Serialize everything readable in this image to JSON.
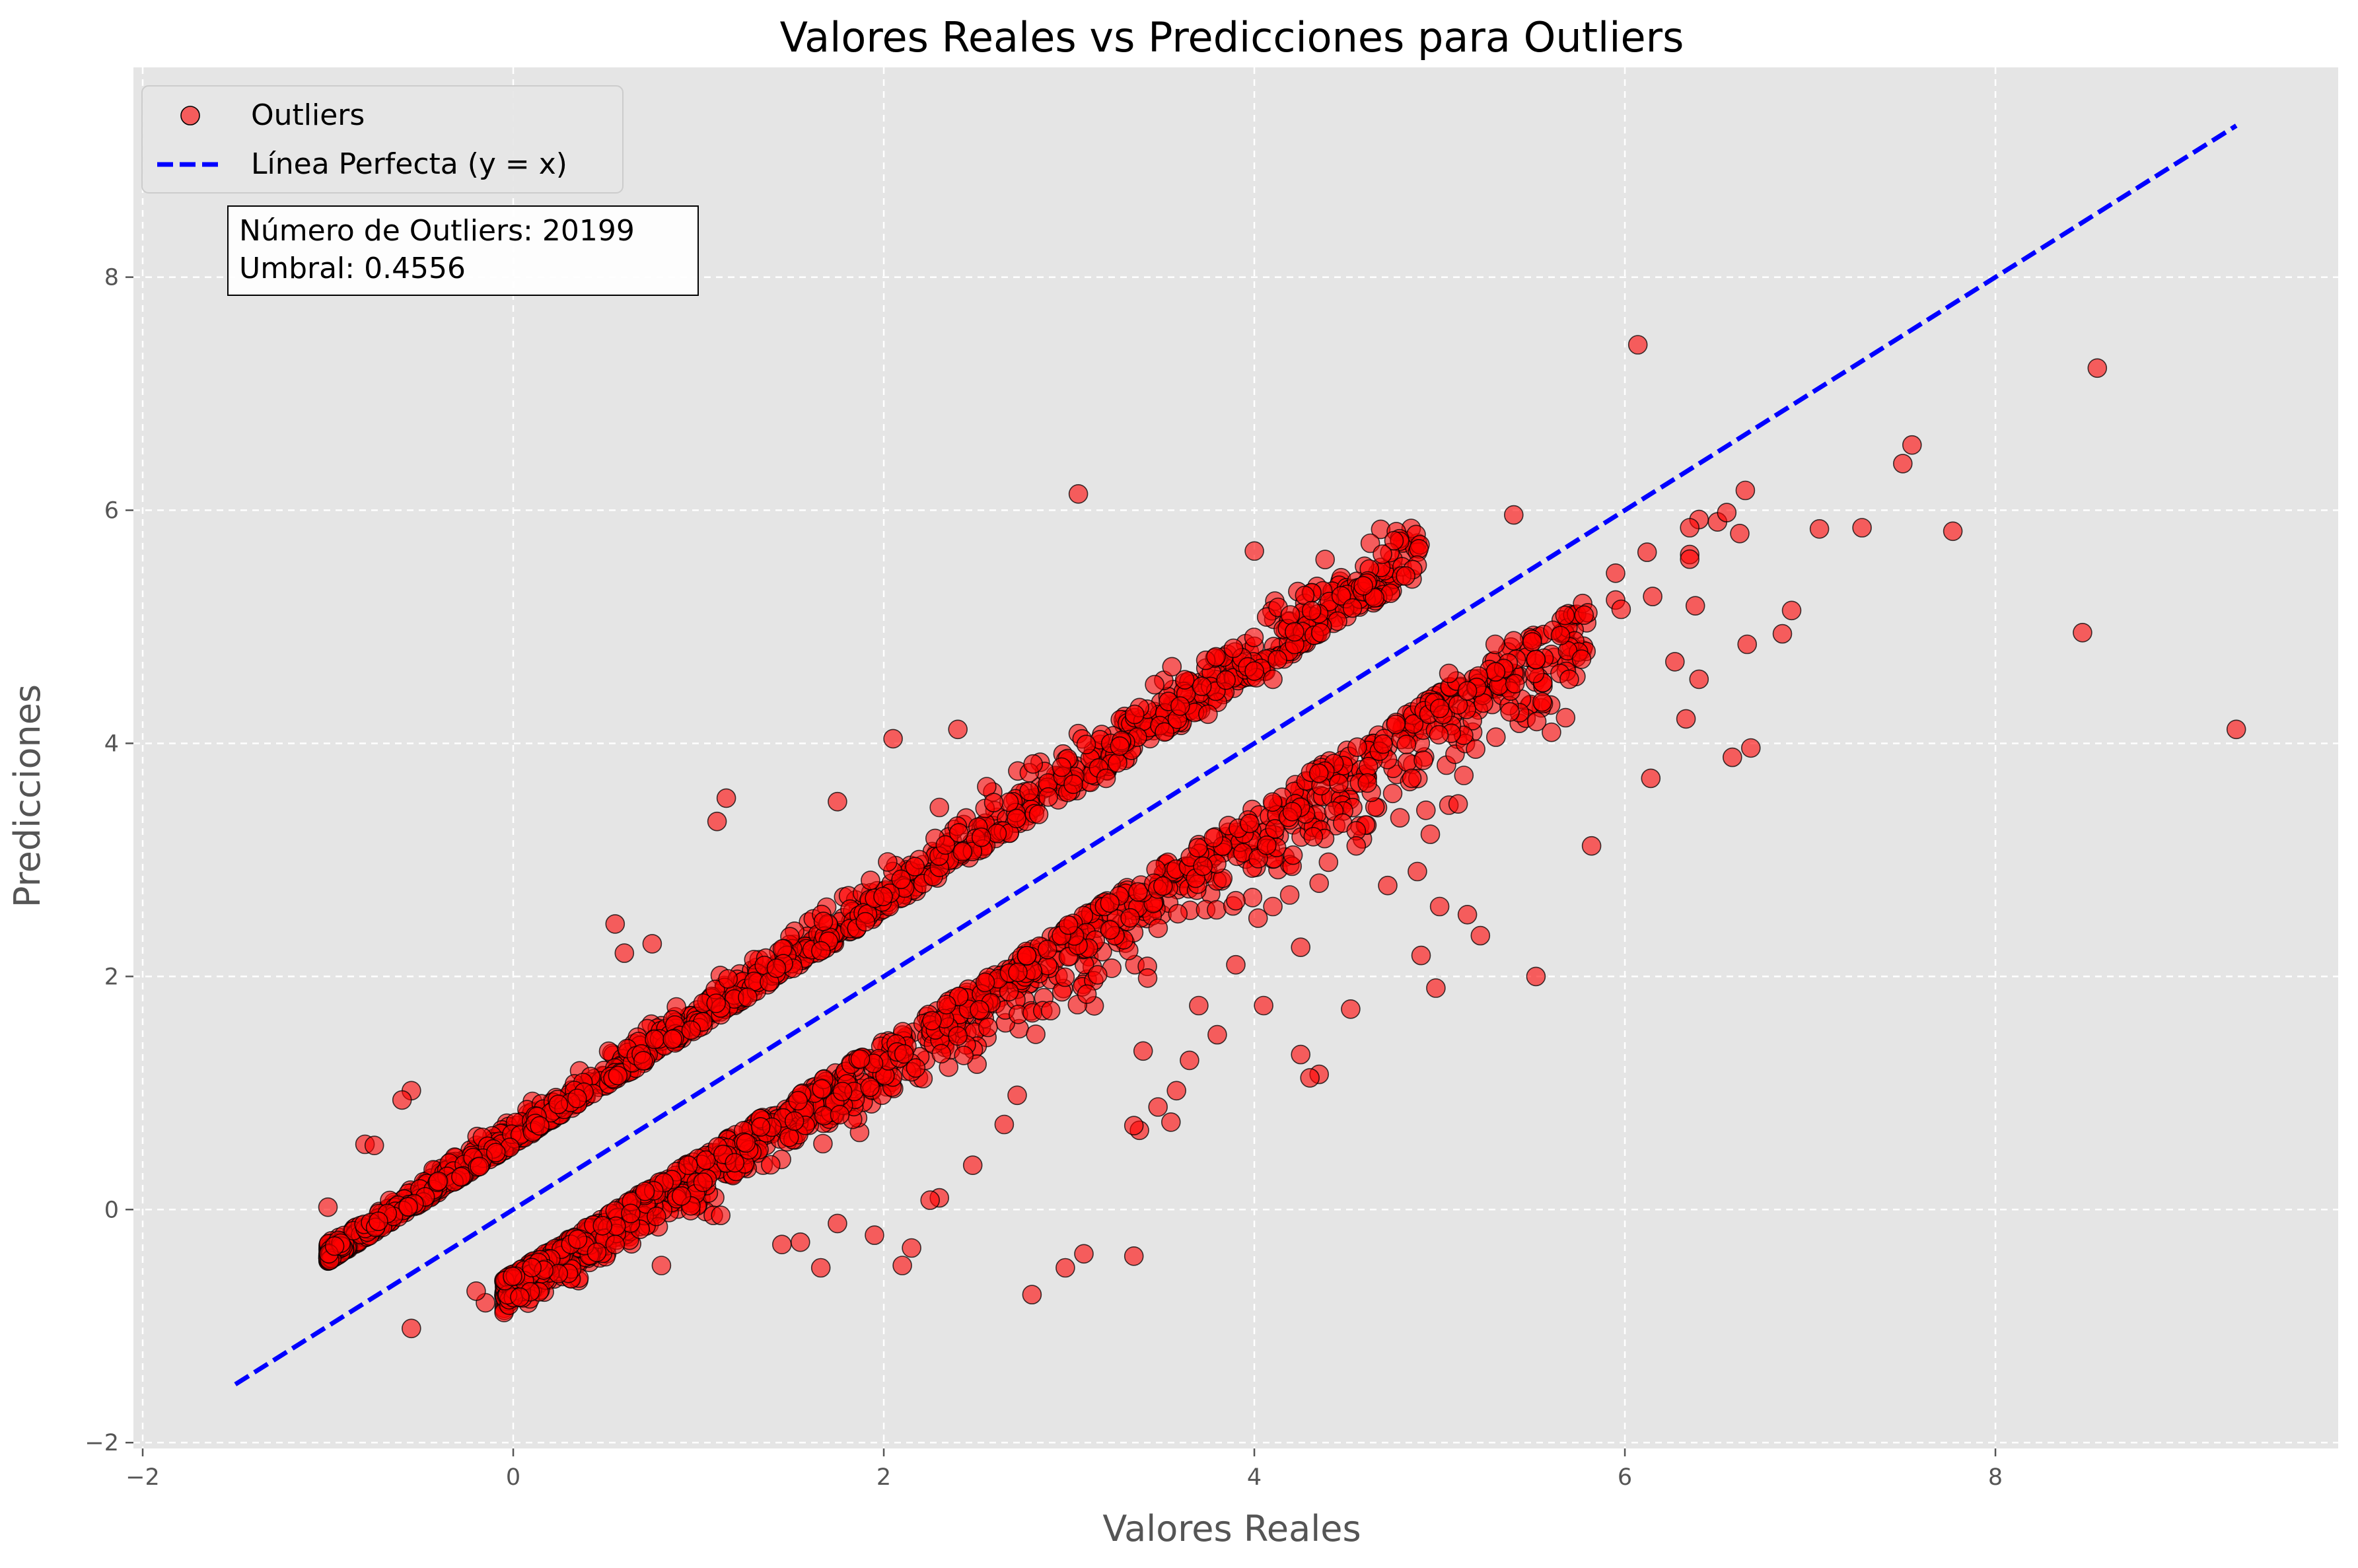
{
  "chart_data": {
    "type": "scatter",
    "title": "Valores Reales vs Predicciones para Outliers",
    "xlabel": "Valores Reales",
    "ylabel": "Predicciones",
    "xlim": [
      -2.05,
      9.85
    ],
    "ylim": [
      -2.05,
      9.8
    ],
    "xticks": [
      -2,
      0,
      2,
      4,
      6,
      8
    ],
    "yticks": [
      -2,
      0,
      2,
      4,
      6,
      8
    ],
    "xtick_labels": [
      "−2",
      "0",
      "2",
      "4",
      "6",
      "8"
    ],
    "ytick_labels": [
      "−2",
      "0",
      "2",
      "4",
      "6",
      "8"
    ],
    "grid": true,
    "legend_position": "top-left",
    "colors": {
      "background": "#e5e5e5",
      "points": "#ff0000",
      "reference_line": "#0000ff"
    },
    "annotation": {
      "line1": "Número de Outliers: 20199",
      "line2": "Umbral: 0.4556"
    },
    "reference_line": {
      "name": "Línea Perfecta (y = x)",
      "x": [
        -1.5,
        9.3
      ],
      "y": [
        -1.5,
        9.3
      ]
    },
    "series": [
      {
        "name": "Outliers",
        "clusters": [
          {
            "x_start": -1.0,
            "x_end": 4.9,
            "offset": 0.55,
            "spread": 0.22,
            "count": 1500
          },
          {
            "x_start": -0.05,
            "x_end": 5.8,
            "offset": -0.55,
            "spread": 0.28,
            "count": 1500
          }
        ],
        "points": [
          [
            6.07,
            7.42
          ],
          [
            8.55,
            7.22
          ],
          [
            3.05,
            6.14
          ],
          [
            7.55,
            6.56
          ],
          [
            7.5,
            6.4
          ],
          [
            6.65,
            6.17
          ],
          [
            5.4,
            5.96
          ],
          [
            4.0,
            5.65
          ],
          [
            7.05,
            5.84
          ],
          [
            7.28,
            5.85
          ],
          [
            7.77,
            5.82
          ],
          [
            6.62,
            5.8
          ],
          [
            6.4,
            5.92
          ],
          [
            6.5,
            5.9
          ],
          [
            6.35,
            5.85
          ],
          [
            6.55,
            5.98
          ],
          [
            5.95,
            5.46
          ],
          [
            6.12,
            5.64
          ],
          [
            6.35,
            5.62
          ],
          [
            6.35,
            5.58
          ],
          [
            6.15,
            5.26
          ],
          [
            5.95,
            5.23
          ],
          [
            5.98,
            5.15
          ],
          [
            6.38,
            5.18
          ],
          [
            5.8,
            5.12
          ],
          [
            5.78,
            5.1
          ],
          [
            6.9,
            5.14
          ],
          [
            8.47,
            4.95
          ],
          [
            6.85,
            4.94
          ],
          [
            6.66,
            4.85
          ],
          [
            6.27,
            4.7
          ],
          [
            6.4,
            4.55
          ],
          [
            5.65,
            4.6
          ],
          [
            5.7,
            4.55
          ],
          [
            9.3,
            4.12
          ],
          [
            6.33,
            4.21
          ],
          [
            5.68,
            4.22
          ],
          [
            5.38,
            4.27
          ],
          [
            6.68,
            3.96
          ],
          [
            6.58,
            3.88
          ],
          [
            6.14,
            3.7
          ],
          [
            5.82,
            3.12
          ],
          [
            5.52,
            2.0
          ],
          [
            5.22,
            2.35
          ],
          [
            5.15,
            2.53
          ],
          [
            5.0,
            2.6
          ],
          [
            4.98,
            1.9
          ],
          [
            4.9,
            2.18
          ],
          [
            4.52,
            1.72
          ],
          [
            4.35,
            1.16
          ],
          [
            4.3,
            1.13
          ],
          [
            4.25,
            1.33
          ],
          [
            3.55,
            0.75
          ],
          [
            3.48,
            0.88
          ],
          [
            3.38,
            0.68
          ],
          [
            3.35,
            0.72
          ],
          [
            2.8,
            -0.73
          ],
          [
            2.98,
            -0.5
          ],
          [
            3.08,
            -0.38
          ],
          [
            3.35,
            -0.4
          ],
          [
            2.1,
            -0.48
          ],
          [
            1.66,
            -0.5
          ],
          [
            1.75,
            -0.12
          ],
          [
            -0.15,
            -0.8
          ],
          [
            -0.55,
            -1.02
          ],
          [
            -0.2,
            -0.7
          ],
          [
            3.4,
            1.36
          ],
          [
            3.58,
            1.02
          ],
          [
            3.8,
            1.5
          ],
          [
            4.1,
            2.6
          ],
          [
            4.35,
            2.8
          ],
          [
            4.6,
            3.3
          ],
          [
            4.55,
            3.25
          ],
          [
            4.72,
            2.78
          ],
          [
            4.85,
            3.7
          ],
          [
            4.88,
            2.9
          ],
          [
            4.95,
            3.22
          ],
          [
            5.05,
            3.47
          ],
          [
            5.1,
            3.48
          ],
          [
            5.2,
            4.48
          ],
          [
            5.0,
            4.3
          ],
          [
            5.05,
            4.6
          ],
          [
            5.3,
            4.85
          ],
          [
            5.4,
            4.88
          ],
          [
            5.5,
            4.87
          ],
          [
            5.52,
            4.72
          ],
          [
            5.1,
            4.33
          ],
          [
            5.15,
            4.45
          ],
          [
            4.1,
            4.55
          ],
          [
            4.0,
            4.62
          ],
          [
            3.6,
            4.32
          ],
          [
            3.75,
            4.25
          ],
          [
            3.2,
            3.7
          ],
          [
            2.4,
            4.12
          ],
          [
            2.3,
            3.45
          ],
          [
            2.05,
            4.04
          ],
          [
            1.75,
            3.5
          ],
          [
            1.15,
            3.53
          ],
          [
            1.1,
            3.33
          ],
          [
            0.75,
            2.28
          ],
          [
            0.55,
            2.45
          ],
          [
            0.6,
            2.2
          ],
          [
            -0.55,
            1.02
          ],
          [
            -0.6,
            0.94
          ],
          [
            -0.8,
            0.56
          ],
          [
            -0.75,
            0.55
          ],
          [
            -1.0,
            0.02
          ],
          [
            2.72,
            0.98
          ],
          [
            2.65,
            0.73
          ],
          [
            2.48,
            0.38
          ],
          [
            2.3,
            0.1
          ],
          [
            2.25,
            0.08
          ],
          [
            1.95,
            -0.22
          ],
          [
            2.15,
            -0.33
          ],
          [
            1.55,
            -0.28
          ],
          [
            1.45,
            -0.3
          ],
          [
            1.12,
            -0.05
          ],
          [
            0.8,
            -0.48
          ],
          [
            0.55,
            -0.3
          ],
          [
            4.05,
            1.75
          ],
          [
            4.25,
            2.25
          ],
          [
            3.9,
            2.1
          ],
          [
            3.7,
            1.75
          ],
          [
            3.65,
            1.28
          ],
          [
            3.9,
            2.65
          ],
          [
            4.02,
            2.5
          ],
          [
            4.4,
            2.98
          ],
          [
            4.55,
            3.12
          ]
        ]
      }
    ]
  }
}
